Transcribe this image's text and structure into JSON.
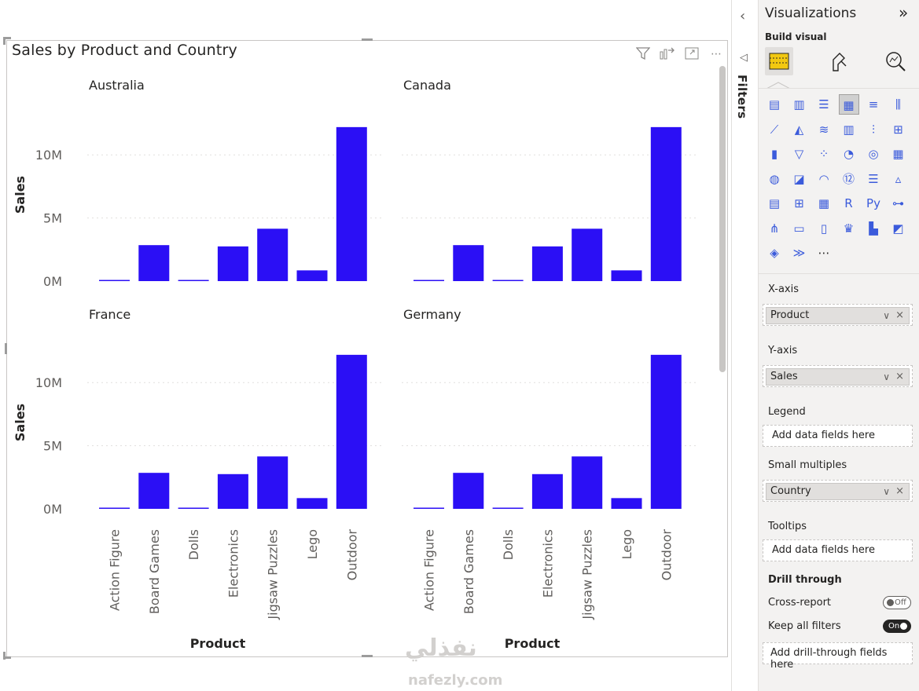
{
  "visual": {
    "title": "Sales by Product and Country",
    "header_icons": [
      "filter-icon",
      "drill-icon",
      "focus-mode-icon",
      "more-options-icon"
    ]
  },
  "chart_data": {
    "type": "bar",
    "small_multiples": true,
    "bar_color": "#2b0ff5",
    "xlabel": "Product",
    "ylabel": "Sales",
    "yticks": [
      "0M",
      "5M",
      "10M"
    ],
    "ylim": [
      0,
      13000000
    ],
    "categories": [
      "Action Figure",
      "Board Games",
      "Dolls",
      "Electronics",
      "Jigsaw Puzzles",
      "Lego",
      "Outdoor"
    ],
    "panels": [
      {
        "name": "Australia",
        "values": [
          50000,
          2850000,
          50000,
          2750000,
          4150000,
          850000,
          12200000
        ]
      },
      {
        "name": "Canada",
        "values": [
          50000,
          2850000,
          50000,
          2750000,
          4150000,
          850000,
          12200000
        ]
      },
      {
        "name": "France",
        "values": [
          50000,
          2850000,
          50000,
          2750000,
          4150000,
          850000,
          12200000
        ]
      },
      {
        "name": "Germany",
        "values": [
          50000,
          2850000,
          50000,
          2750000,
          4150000,
          850000,
          12200000
        ]
      }
    ]
  },
  "filters_pane": {
    "label": "Filters",
    "collapse_icon": "chevron-left-icon"
  },
  "viz_pane": {
    "title": "Visualizations",
    "build_visual_label": "Build visual",
    "x_axis": {
      "label": "X-axis",
      "field": "Product"
    },
    "y_axis": {
      "label": "Y-axis",
      "field": "Sales"
    },
    "legend": {
      "label": "Legend",
      "placeholder": "Add data fields here"
    },
    "small_multiples": {
      "label": "Small multiples",
      "field": "Country"
    },
    "tooltips": {
      "label": "Tooltips",
      "placeholder": "Add data fields here"
    },
    "drill_through": {
      "label": "Drill through",
      "cross_report_label": "Cross-report",
      "cross_report_state": "Off",
      "keep_filters_label": "Keep all filters",
      "keep_filters_state": "On",
      "placeholder": "Add drill-through fields here"
    },
    "visual_icons": [
      "stacked-bar-icon",
      "stacked-column-icon",
      "clustered-bar-icon",
      "clustered-column-icon",
      "100-bar-icon",
      "100-column-icon",
      "line-icon",
      "area-icon",
      "stacked-area-icon",
      "line-column-icon",
      "line-clustered-column-icon",
      "ribbon-icon",
      "waterfall-icon",
      "funnel-icon",
      "scatter-icon",
      "pie-icon",
      "donut-icon",
      "treemap-icon",
      "map-icon",
      "filled-map-icon",
      "gauge-icon",
      "card-icon",
      "multi-row-card-icon",
      "kpi-icon",
      "slicer-icon",
      "table-icon",
      "matrix-icon",
      "r-visual-icon",
      "python-visual-icon",
      "key-influencers-icon",
      "decomposition-tree-icon",
      "qa-icon",
      "smart-narrative-icon",
      "metrics-icon",
      "paginated-report-icon",
      "azure-map-icon",
      "power-apps-icon",
      "power-automate-icon",
      "more-visuals-icon"
    ]
  },
  "watermark": {
    "text": "نفذلي",
    "sub": "nafezly.com"
  }
}
